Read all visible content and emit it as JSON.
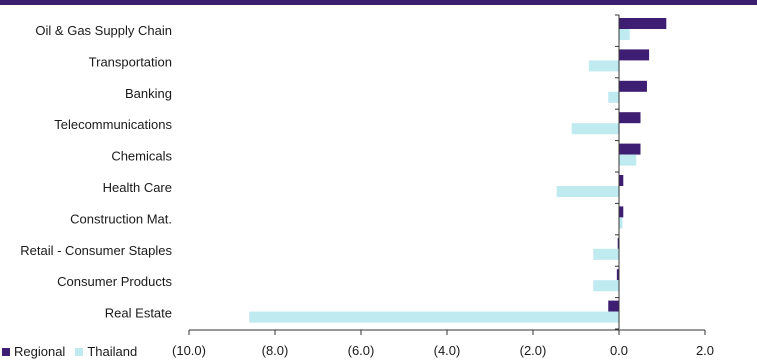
{
  "chart_data": {
    "type": "bar",
    "orientation": "horizontal",
    "categories": [
      "Oil & Gas Supply Chain",
      "Transportation",
      "Banking",
      "Telecommunications",
      "Chemicals",
      "Health Care",
      "Construction Mat.",
      "Retail - Consumer Staples",
      "Consumer Products",
      "Real Estate"
    ],
    "series": [
      {
        "name": "Regional",
        "color": "#3d1e73",
        "values": [
          1.1,
          0.7,
          0.65,
          0.5,
          0.5,
          0.1,
          0.1,
          -0.03,
          -0.05,
          -0.25
        ]
      },
      {
        "name": "Thailand",
        "color": "#bfeaf0",
        "values": [
          0.25,
          -0.7,
          -0.25,
          -1.1,
          0.4,
          -1.45,
          0.08,
          -0.6,
          -0.6,
          -8.6
        ]
      }
    ],
    "x_ticks": [
      "(10.0)",
      "(8.0)",
      "(6.0)",
      "(4.0)",
      "(2.0)",
      "0.0",
      "2.0"
    ],
    "xlim": [
      -10,
      2
    ],
    "grid": false,
    "legend_position": "bottom-left",
    "title": "",
    "xlabel": "",
    "ylabel": ""
  }
}
